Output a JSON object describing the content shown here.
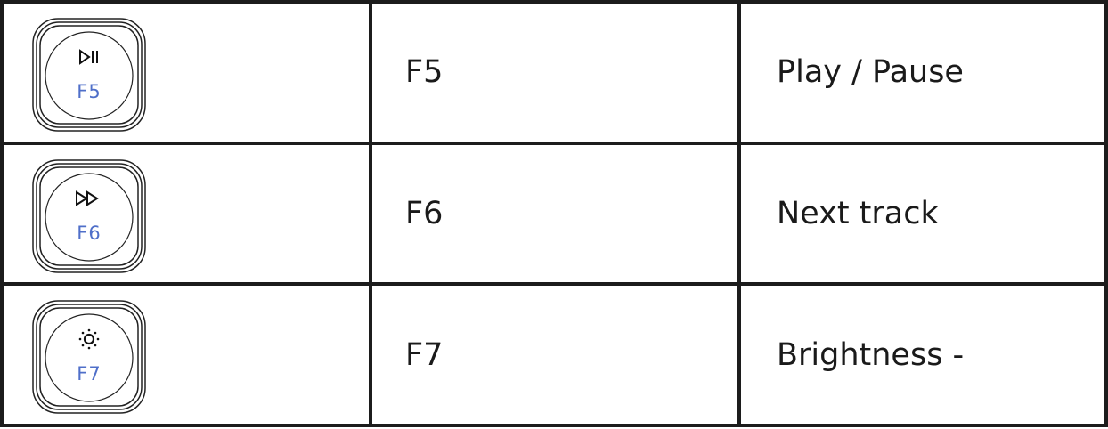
{
  "rows": [
    {
      "key_label": "F5",
      "icon": "play-pause-icon",
      "key": "F5",
      "function": "Play / Pause"
    },
    {
      "key_label": "F6",
      "icon": "fast-forward-icon",
      "key": "F6",
      "function": "Next track"
    },
    {
      "key_label": "F7",
      "icon": "brightness-down-icon",
      "key": "F7",
      "function": "Brightness -"
    }
  ],
  "colors": {
    "key_label": "#4f6fc9",
    "border": "#1c1c1c"
  }
}
